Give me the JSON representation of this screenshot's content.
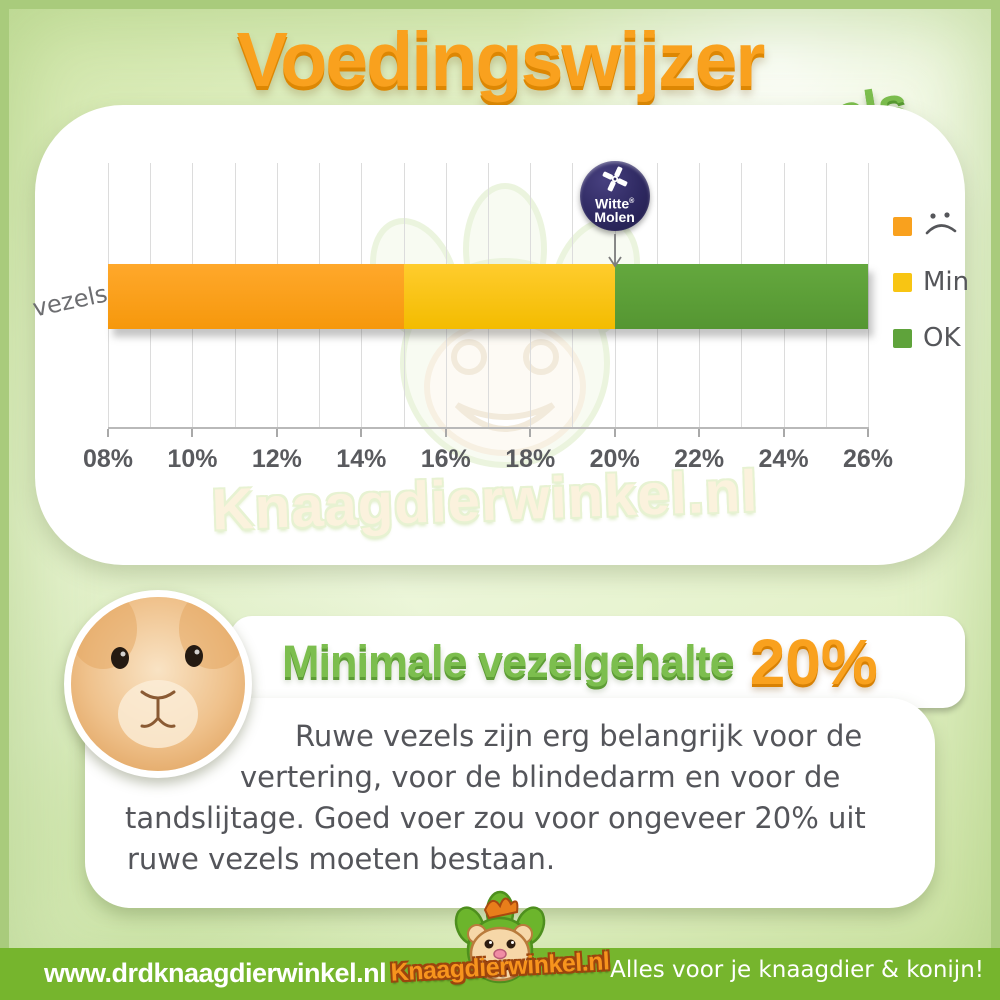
{
  "title": "Voedingswijzer",
  "subtitle": "Vezels",
  "watermark_text": "Knaagdierwinkel.nl",
  "chart_data": {
    "type": "bar",
    "orientation": "horizontal",
    "row_label": "vezels",
    "x_min": 8,
    "x_max": 26,
    "x_unit": "%",
    "x_ticks": [
      {
        "value": 8,
        "label": "08%"
      },
      {
        "value": 10,
        "label": "10%"
      },
      {
        "value": 12,
        "label": "12%"
      },
      {
        "value": 14,
        "label": "14%"
      },
      {
        "value": 16,
        "label": "16%"
      },
      {
        "value": 18,
        "label": "18%"
      },
      {
        "value": 20,
        "label": "20%"
      },
      {
        "value": 22,
        "label": "22%"
      },
      {
        "value": 24,
        "label": "24%"
      },
      {
        "value": 26,
        "label": "26%"
      }
    ],
    "grid_step": 1,
    "segments": [
      {
        "name": "te-weinig",
        "from": 8,
        "to": 15,
        "color": "#FFA82B",
        "color2": "#F6980C"
      },
      {
        "name": "minimum",
        "from": 15,
        "to": 20,
        "color": "#FFCC2D",
        "color2": "#F3BC00"
      },
      {
        "name": "ok",
        "from": 20,
        "to": 26,
        "color": "#64A83E",
        "color2": "#559632"
      }
    ],
    "legend": [
      {
        "swatch": "#F9A11E",
        "label": "",
        "icon": "sad-face"
      },
      {
        "swatch": "#F8C513",
        "label": "Min"
      },
      {
        "swatch": "#5FA33B",
        "label": "OK"
      }
    ],
    "marker": {
      "value": 20,
      "brand_line1": "Witte",
      "brand_reg": "®",
      "brand_line2": "Molen"
    }
  },
  "info": {
    "heading": "Minimale vezelgehalte",
    "heading_value": "20%",
    "body_lines": [
      "Ruwe vezels zijn erg belangrijk voor de",
      "vertering, voor de blindedarm en voor de",
      "tandslijtage. Goed voer zou voor ongeveer 20% uit",
      "ruwe vezels moeten bestaan."
    ]
  },
  "footer": {
    "left_url": "www.drdknaagdierwinkel.nl",
    "brand": "Knaagdierwinkel.nl",
    "tagline": "Alles voor je knaagdier & konijn!"
  }
}
